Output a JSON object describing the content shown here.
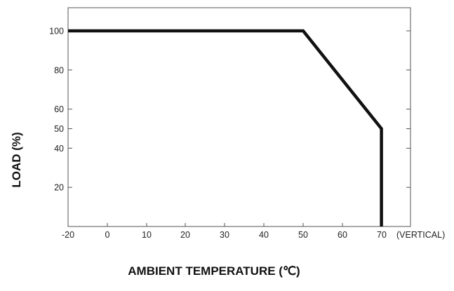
{
  "chart_data": {
    "type": "line",
    "title": "",
    "xlabel": "AMBIENT TEMPERATURE (℃)",
    "ylabel": "LOAD (%)",
    "x_note": "(VERTICAL)",
    "xlim": [
      -20,
      70
    ],
    "ylim": [
      0,
      112
    ],
    "x_ticks": [
      "-20",
      "0",
      "10",
      "20",
      "30",
      "40",
      "50",
      "60",
      "70"
    ],
    "y_ticks": [
      "20",
      "40",
      "50",
      "60",
      "80",
      "100"
    ],
    "grid": false,
    "series": [
      {
        "x": [
          -20,
          50,
          70,
          70
        ],
        "y": [
          100,
          100,
          50,
          0
        ]
      }
    ],
    "colors": {
      "line": "#111111",
      "frame": "#555555"
    }
  }
}
